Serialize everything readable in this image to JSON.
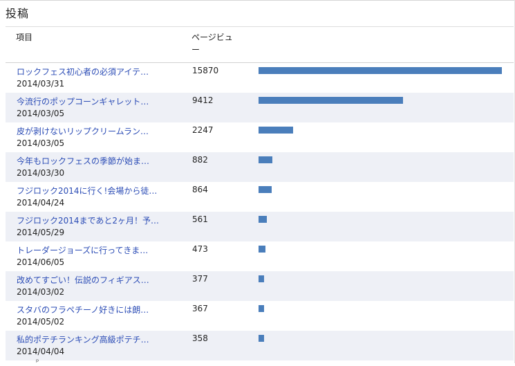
{
  "panel": {
    "title": "投稿"
  },
  "columns": {
    "item": "項目",
    "views": "ページビュー"
  },
  "max_views": 15870,
  "rows": [
    {
      "title": "ロックフェス初心者の必須アイテ…",
      "date": "2014/03/31",
      "views": 15870
    },
    {
      "title": "今流行のポップコーンギャレット…",
      "date": "2014/03/05",
      "views": 9412
    },
    {
      "title": "皮が剥けないリップクリームラン…",
      "date": "2014/03/05",
      "views": 2247
    },
    {
      "title": "今年もロックフェスの季節が始ま…",
      "date": "2014/03/30",
      "views": 882
    },
    {
      "title": "フジロック2014に行く!会場から徒…",
      "date": "2014/04/24",
      "views": 864
    },
    {
      "title": "フジロック2014まであと2ヶ月！予…",
      "date": "2014/05/29",
      "views": 561
    },
    {
      "title": "トレーダージョーズに行ってきま…",
      "date": "2014/06/05",
      "views": 473
    },
    {
      "title": "改めてすごい！伝説のフィギアス…",
      "date": "2014/03/02",
      "views": 377
    },
    {
      "title": "スタバのフラペチーノ好きには朗…",
      "date": "2014/05/02",
      "views": 367
    },
    {
      "title": "私的ポテチランキング高級ポテチ…",
      "date": "2014/04/04",
      "views": 358
    }
  ],
  "colors": {
    "bar": "#4a7ebb",
    "link": "#2a4bb5",
    "alt_row": "#eef0f6"
  }
}
